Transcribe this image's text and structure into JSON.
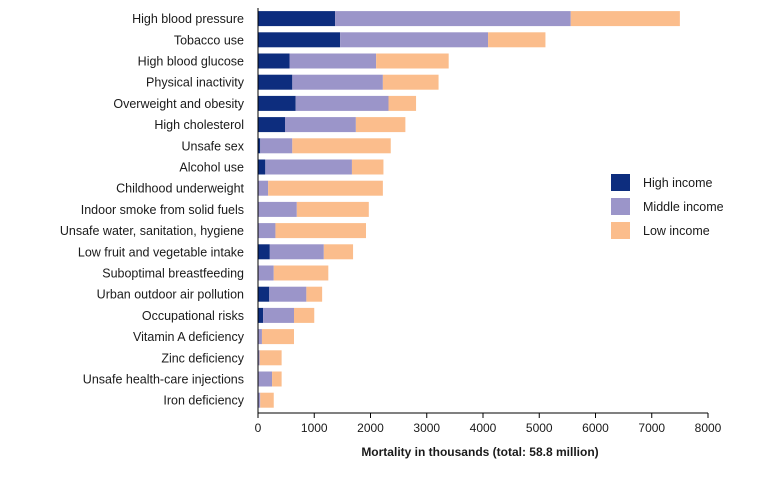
{
  "chart_data": {
    "type": "bar",
    "orientation": "horizontal",
    "stacked": true,
    "categories": [
      "High blood pressure",
      "Tobacco use",
      "High blood glucose",
      "Physical inactivity",
      "Overweight and obesity",
      "High cholesterol",
      "Unsafe sex",
      "Alcohol use",
      "Childhood underweight",
      "Indoor smoke from solid fuels",
      "Unsafe water, sanitation, hygiene",
      "Low fruit and vegetable intake",
      "Suboptimal breastfeeding",
      "Urban outdoor air pollution",
      "Occupational risks",
      "Vitamin A deficiency",
      "Zinc deficiency",
      "Unsafe health-care injections",
      "Iron deficiency"
    ],
    "series": [
      {
        "name": "High income",
        "color": "#0d2d7e",
        "values": [
          1370,
          1460,
          560,
          610,
          670,
          480,
          40,
          130,
          0,
          0,
          0,
          210,
          0,
          200,
          90,
          0,
          0,
          0,
          0
        ]
      },
      {
        "name": "Middle income",
        "color": "#9b95c9",
        "values": [
          4190,
          2630,
          1540,
          1610,
          1650,
          1260,
          570,
          1540,
          180,
          690,
          310,
          960,
          280,
          660,
          550,
          70,
          30,
          250,
          40
        ]
      },
      {
        "name": "Low income",
        "color": "#fbbd8c",
        "values": [
          1940,
          1020,
          1290,
          990,
          490,
          880,
          1750,
          560,
          2040,
          1280,
          1610,
          520,
          970,
          280,
          360,
          570,
          390,
          170,
          240
        ]
      }
    ],
    "xlabel": "Mortality in thousands (total: 58.8 million)",
    "ylabel": "",
    "xlim": [
      0,
      8000
    ],
    "xticks": [
      "0",
      "1000",
      "2000",
      "3000",
      "4000",
      "5000",
      "6000",
      "7000",
      "8000"
    ],
    "grid": false,
    "legend_position": "right"
  }
}
